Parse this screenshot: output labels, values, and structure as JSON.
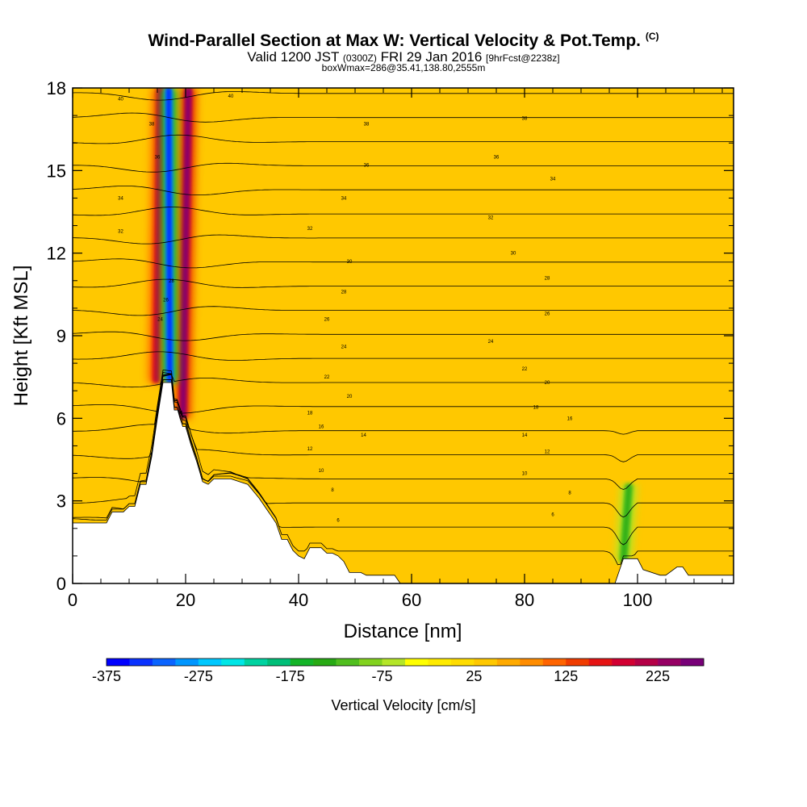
{
  "header": {
    "title": "Wind-Parallel Section at Max W: Vertical Velocity & Pot.Temp.",
    "copyright": "(C)",
    "valid_main": "Valid 1200 JST",
    "valid_utc": "(0300Z)",
    "valid_date": "FRI 29 Jan 2016",
    "forecast": "[9hrFcst@2238z]",
    "box": "boxWmax=286@35.41,138.80,2555m"
  },
  "chart_data": {
    "type": "heatmap",
    "title": "Wind-Parallel Section at Max W: Vertical Velocity & Pot.Temp.",
    "xlabel": "Distance [nm]",
    "ylabel": "Height [Kft MSL]",
    "xlim": [
      0,
      117
    ],
    "ylim": [
      0,
      18
    ],
    "x_ticks": [
      "0",
      "20",
      "40",
      "60",
      "80",
      "100"
    ],
    "x_tick_values": [
      0,
      20,
      40,
      60,
      80,
      100
    ],
    "y_ticks": [
      "0",
      "3",
      "6",
      "9",
      "12",
      "15",
      "18"
    ],
    "y_tick_values": [
      0,
      3,
      6,
      9,
      12,
      15,
      18
    ],
    "background_velocity_cm_s": 25,
    "features": [
      {
        "feature": "updraft",
        "x_center": 19.5,
        "x_top": 20.5,
        "y_range": [
          6,
          18
        ],
        "max_cm_s": 250
      },
      {
        "feature": "updraft",
        "x_center": 14.8,
        "x_top": 15.5,
        "y_range": [
          7.3,
          18
        ],
        "max_cm_s": 200
      },
      {
        "feature": "downdraft",
        "x_center": 17.2,
        "x_top": 17.0,
        "y_range": [
          7.3,
          18
        ],
        "min_cm_s": -375
      },
      {
        "feature": "downdraft",
        "x_center": 97.5,
        "x_top": 98.5,
        "y_range": [
          0.8,
          3.6
        ],
        "min_cm_s": -150
      }
    ],
    "terrain": {
      "x": [
        0,
        6,
        7,
        8,
        9,
        10,
        11,
        12,
        13,
        14,
        15,
        16,
        17,
        17.5,
        18,
        18.6,
        19,
        19.5,
        20,
        21,
        22,
        23,
        24,
        25,
        28,
        31,
        33,
        34,
        35,
        36,
        37,
        38,
        39,
        40,
        41,
        42,
        44,
        45,
        46,
        47,
        48,
        49,
        51,
        52,
        57,
        58,
        72,
        73,
        96,
        96.5,
        97,
        97.5,
        98,
        98.5,
        100,
        101,
        104,
        105,
        107,
        108,
        109,
        117
      ],
      "y": [
        2.2,
        2.2,
        2.6,
        2.6,
        2.6,
        2.8,
        2.8,
        3.6,
        3.6,
        4.6,
        6.0,
        7.3,
        7.3,
        7.3,
        6.3,
        6.3,
        6.0,
        5.7,
        5.7,
        5.0,
        4.4,
        3.7,
        3.6,
        3.8,
        3.8,
        3.6,
        3.1,
        2.8,
        2.5,
        2.2,
        1.6,
        1.6,
        1.2,
        1.0,
        0.9,
        1.3,
        1.3,
        1.1,
        1.1,
        1.0,
        0.8,
        0.4,
        0.4,
        0.3,
        0.3,
        0.0,
        0.0,
        0.0,
        0.0,
        0.3,
        0.6,
        0.9,
        0.9,
        0.9,
        0.9,
        0.5,
        0.3,
        0.3,
        0.6,
        0.6,
        0.3,
        0.3
      ]
    },
    "theta_contours": {
      "levels": [
        2,
        4,
        6,
        8,
        10,
        12,
        14,
        16,
        18,
        20,
        22,
        24,
        26,
        28,
        30,
        32,
        34,
        36,
        38,
        40
      ],
      "labels": [
        {
          "text": "6",
          "x": 47,
          "y": 2.3
        },
        {
          "text": "6",
          "x": 85,
          "y": 2.5
        },
        {
          "text": "8",
          "x": 46,
          "y": 3.4
        },
        {
          "text": "8",
          "x": 88,
          "y": 3.3
        },
        {
          "text": "10",
          "x": 44,
          "y": 4.1
        },
        {
          "text": "10",
          "x": 80,
          "y": 4.0
        },
        {
          "text": "12",
          "x": 42,
          "y": 4.9
        },
        {
          "text": "12",
          "x": 84,
          "y": 4.8
        },
        {
          "text": "14",
          "x": 51.5,
          "y": 5.4
        },
        {
          "text": "14",
          "x": 80,
          "y": 5.4
        },
        {
          "text": "16",
          "x": 44,
          "y": 5.7
        },
        {
          "text": "16",
          "x": 88,
          "y": 6.0
        },
        {
          "text": "18",
          "x": 42,
          "y": 6.2
        },
        {
          "text": "18",
          "x": 82,
          "y": 6.4
        },
        {
          "text": "20",
          "x": 49,
          "y": 6.8
        },
        {
          "text": "20",
          "x": 84,
          "y": 7.3
        },
        {
          "text": "22",
          "x": 45,
          "y": 7.5
        },
        {
          "text": "22",
          "x": 80,
          "y": 7.8
        },
        {
          "text": "24",
          "x": 48,
          "y": 8.6
        },
        {
          "text": "24",
          "x": 74,
          "y": 8.8
        },
        {
          "text": "26",
          "x": 45,
          "y": 9.6
        },
        {
          "text": "26",
          "x": 84,
          "y": 9.8
        },
        {
          "text": "28",
          "x": 48,
          "y": 10.6
        },
        {
          "text": "28",
          "x": 84,
          "y": 11.1
        },
        {
          "text": "30",
          "x": 49,
          "y": 11.7
        },
        {
          "text": "30",
          "x": 78,
          "y": 12.0
        },
        {
          "text": "32",
          "x": 8.5,
          "y": 12.8
        },
        {
          "text": "32",
          "x": 42,
          "y": 12.9
        },
        {
          "text": "32",
          "x": 74,
          "y": 13.3
        },
        {
          "text": "34",
          "x": 8.5,
          "y": 14.0
        },
        {
          "text": "34",
          "x": 48,
          "y": 14.0
        },
        {
          "text": "34",
          "x": 85,
          "y": 14.7
        },
        {
          "text": "36",
          "x": 52,
          "y": 15.2
        },
        {
          "text": "36",
          "x": 75,
          "y": 15.5
        },
        {
          "text": "38",
          "x": 52,
          "y": 16.7
        },
        {
          "text": "38",
          "x": 80,
          "y": 16.9
        },
        {
          "text": "40",
          "x": 8.5,
          "y": 17.6
        },
        {
          "text": "40",
          "x": 28,
          "y": 17.7
        },
        {
          "text": "38",
          "x": 14,
          "y": 16.7
        },
        {
          "text": "36",
          "x": 15,
          "y": 15.5
        },
        {
          "text": "28",
          "x": 17.5,
          "y": 11.0
        },
        {
          "text": "26",
          "x": 16.5,
          "y": 10.3
        },
        {
          "text": "24",
          "x": 15.5,
          "y": 9.6
        },
        {
          "text": "18",
          "x": 19,
          "y": 6.2
        }
      ]
    },
    "colorbar": {
      "label": "Vertical Velocity [cm/s]",
      "ticks": [
        "-375",
        "-275",
        "-175",
        "-75",
        "25",
        "125",
        "225"
      ],
      "tick_values": [
        -375,
        -275,
        -175,
        -75,
        25,
        125,
        225
      ],
      "range": [
        -375,
        275
      ],
      "colors": [
        "#0000ff",
        "#0a32ff",
        "#0a64ff",
        "#0096ff",
        "#00c8ff",
        "#00e6e6",
        "#00d2a0",
        "#00be78",
        "#14b428",
        "#28aa14",
        "#50be1e",
        "#82d21e",
        "#b4e628",
        "#ffff00",
        "#ffeb00",
        "#ffdc00",
        "#ffc800",
        "#ffaa00",
        "#ff8c00",
        "#ff6400",
        "#f03c00",
        "#e61414",
        "#d20032",
        "#b40046",
        "#960064",
        "#780078"
      ]
    }
  }
}
